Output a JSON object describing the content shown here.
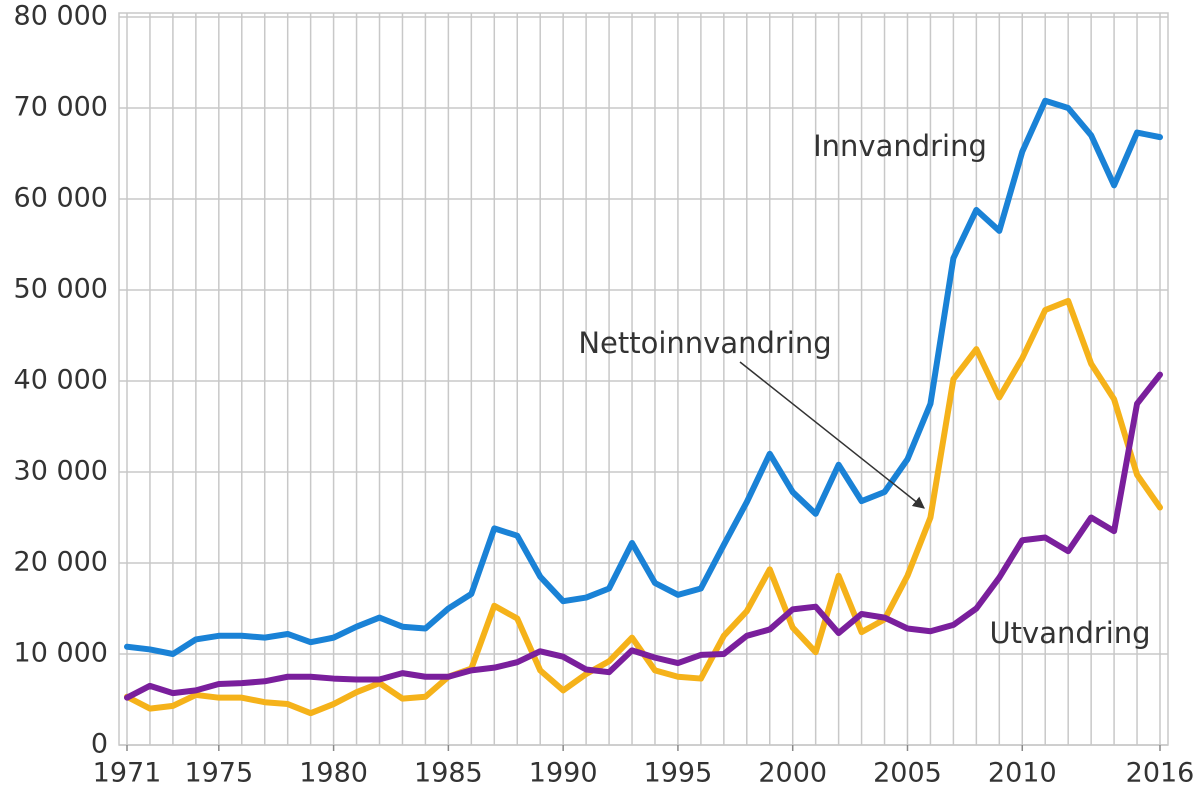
{
  "chart_data": {
    "type": "line",
    "x": [
      1971,
      1972,
      1973,
      1974,
      1975,
      1976,
      1977,
      1978,
      1979,
      1980,
      1981,
      1982,
      1983,
      1984,
      1985,
      1986,
      1987,
      1988,
      1989,
      1990,
      1991,
      1992,
      1993,
      1994,
      1995,
      1996,
      1997,
      1998,
      1999,
      2000,
      2001,
      2002,
      2003,
      2004,
      2005,
      2006,
      2007,
      2008,
      2009,
      2010,
      2011,
      2012,
      2013,
      2014,
      2015,
      2016
    ],
    "series": [
      {
        "name": "Innvandring",
        "color": "#1a82d6",
        "values": [
          10800,
          10500,
          10000,
          11600,
          12000,
          12000,
          11800,
          12200,
          11300,
          11800,
          13000,
          14000,
          13000,
          12800,
          15000,
          16600,
          23800,
          23000,
          18500,
          15800,
          16200,
          17200,
          22200,
          17800,
          16500,
          17200,
          22000,
          26700,
          32000,
          27800,
          25400,
          30800,
          26800,
          27800,
          31400,
          37500,
          53500,
          58800,
          56500,
          65200,
          70800,
          70000,
          67000,
          61500,
          67300,
          66800
        ]
      },
      {
        "name": "Nettoinnvandring",
        "color": "#f5b21a",
        "values": [
          5300,
          4000,
          4300,
          5500,
          5200,
          5200,
          4700,
          4500,
          3500,
          4500,
          5800,
          6800,
          5100,
          5300,
          7500,
          8400,
          15300,
          13900,
          8200,
          6000,
          7800,
          9200,
          11800,
          8200,
          7500,
          7300,
          12000,
          14700,
          19300,
          12900,
          10200,
          18600,
          12400,
          13800,
          18600,
          25000,
          40200,
          43500,
          38200,
          42500,
          47800,
          48800,
          41900,
          38000,
          29700,
          26100
        ]
      },
      {
        "name": "Utvandring",
        "color": "#7a1f9c",
        "values": [
          5200,
          6500,
          5700,
          6000,
          6700,
          6800,
          7000,
          7500,
          7500,
          7300,
          7200,
          7200,
          7900,
          7500,
          7500,
          8200,
          8500,
          9100,
          10300,
          9700,
          8300,
          8000,
          10400,
          9600,
          9000,
          9900,
          10000,
          12000,
          12700,
          14900,
          15200,
          12300,
          14400,
          14000,
          12800,
          12500,
          13200,
          15000,
          18400,
          22500,
          22800,
          21300,
          25000,
          23500,
          37500,
          40700
        ]
      }
    ],
    "xlim": [
      1971,
      2016
    ],
    "xticks": [
      1971,
      1975,
      1980,
      1985,
      1990,
      1995,
      2000,
      2005,
      2010,
      2016
    ],
    "ylim": [
      0,
      80000
    ],
    "yticks": [
      0,
      {
        "value": 10000,
        "label": "10 000"
      },
      {
        "value": 20000,
        "label": "20 000"
      },
      {
        "value": 30000,
        "label": "30 000"
      },
      {
        "value": 40000,
        "label": "40 000"
      },
      {
        "value": 50000,
        "label": "50 000"
      },
      {
        "value": 60000,
        "label": "60 000"
      },
      {
        "value": 70000,
        "label": "70 000"
      },
      {
        "value": 80000,
        "label": "80 000"
      }
    ],
    "grid": true
  }
}
